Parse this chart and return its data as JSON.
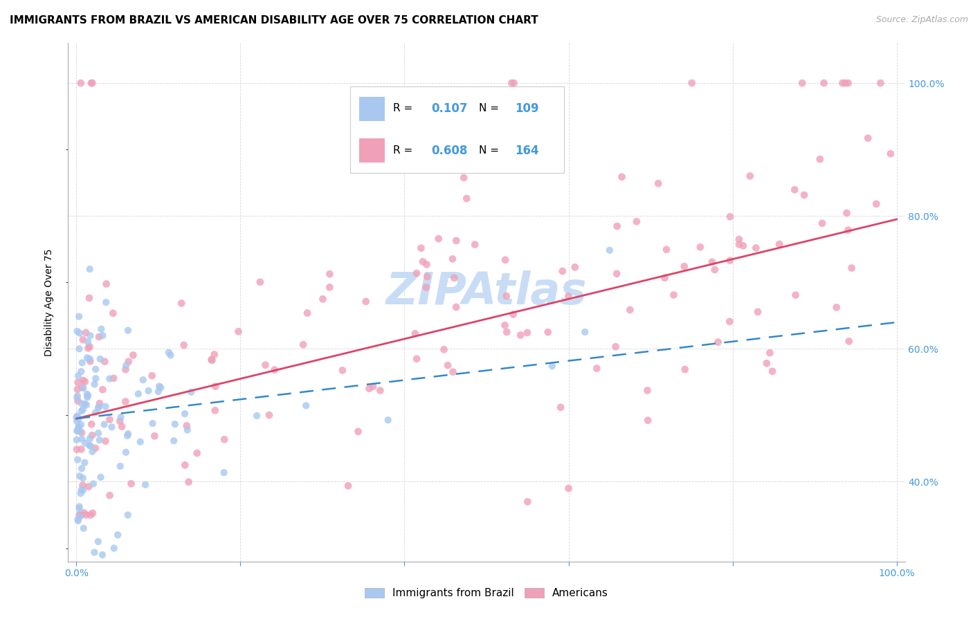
{
  "title": "IMMIGRANTS FROM BRAZIL VS AMERICAN DISABILITY AGE OVER 75 CORRELATION CHART",
  "source": "Source: ZipAtlas.com",
  "ylabel": "Disability Age Over 75",
  "blue_R": "0.107",
  "blue_N": "109",
  "pink_R": "0.608",
  "pink_N": "164",
  "legend_labels": [
    "Immigrants from Brazil",
    "Americans"
  ],
  "blue_color": "#a8c8f0",
  "pink_color": "#f0a0b8",
  "blue_line_color": "#3388cc",
  "pink_line_color": "#dd4466",
  "tick_color": "#4499dd",
  "watermark_color": "#c8ddf5",
  "grid_color": "#cccccc",
  "xlim": [
    -0.01,
    1.01
  ],
  "ylim": [
    0.28,
    1.06
  ],
  "right_yticks": [
    0.4,
    0.6,
    0.8,
    1.0
  ],
  "right_yticklabels": [
    "40.0%",
    "60.0%",
    "80.0%",
    "100.0%"
  ],
  "xtick_vals": [
    0.0,
    1.0
  ],
  "xtick_labels": [
    "0.0%",
    "100.0%"
  ]
}
